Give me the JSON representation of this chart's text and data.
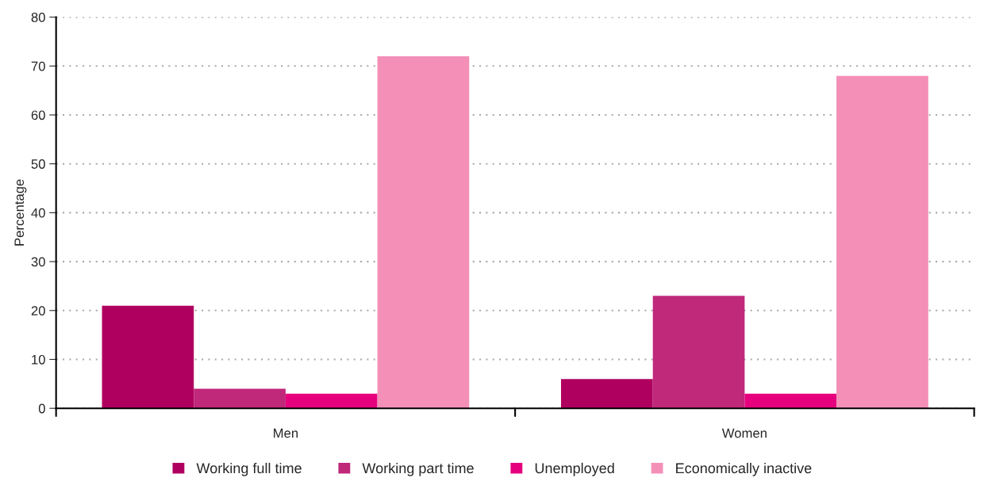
{
  "chart_data": {
    "type": "bar",
    "ylabel": "Percentage",
    "categories": [
      "Men",
      "Women"
    ],
    "series": [
      {
        "name": "Working full time",
        "color": "#b0005f",
        "values": [
          21,
          6
        ]
      },
      {
        "name": "Working part time",
        "color": "#c0287a",
        "values": [
          4,
          23
        ]
      },
      {
        "name": "Unemployed",
        "color": "#e6007e",
        "values": [
          3,
          3
        ]
      },
      {
        "name": "Economically inactive",
        "color": "#f48fb8",
        "values": [
          72,
          68
        ]
      }
    ],
    "ylim": [
      0,
      80
    ],
    "yticks": [
      0,
      10,
      20,
      30,
      40,
      50,
      60,
      70,
      80
    ],
    "grid": "y",
    "legend": "bottom"
  }
}
